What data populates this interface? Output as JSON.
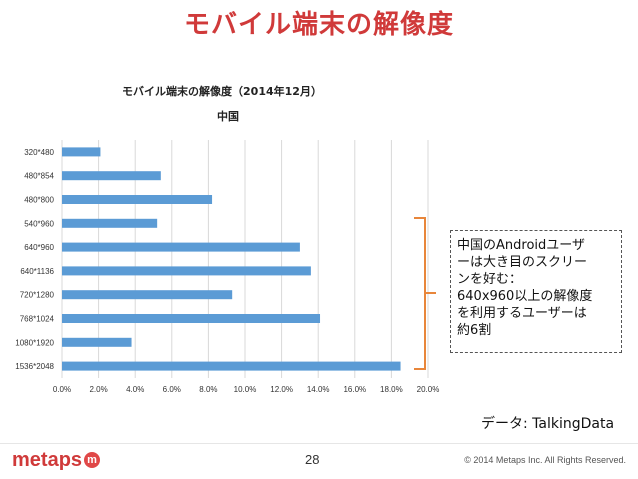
{
  "slide": {
    "title": "モバイル端末の解像度",
    "page_number": "28",
    "copyright": "© 2014 Metaps Inc. All Rights Reserved.",
    "logo_text": "metaps",
    "logo_mark": "m"
  },
  "note": {
    "lines": [
      "中国のAndroidユーザ",
      "ーは大き目のスクリー",
      "ンを好む：",
      "640x960以上の解像度",
      "を利用するユーザーは",
      "約6割"
    ]
  },
  "source": "データ: TalkingData",
  "colors": {
    "accent": "#d03a3a",
    "bar": "#5b9bd5",
    "bracket": "#e8863b"
  },
  "chart_data": {
    "type": "bar",
    "orientation": "horizontal",
    "title": "モバイル端末の解像度（2014年12月）",
    "subtitle": "中国",
    "categories": [
      "320*480",
      "480*854",
      "480*800",
      "540*960",
      "640*960",
      "640*1136",
      "720*1280",
      "768*1024",
      "1080*1920",
      "1536*2048"
    ],
    "values": [
      2.1,
      5.4,
      8.2,
      5.2,
      13.0,
      13.6,
      9.3,
      14.1,
      3.8,
      18.5
    ],
    "xlim": [
      0,
      20
    ],
    "xticks": [
      "0.0%",
      "2.0%",
      "4.0%",
      "6.0%",
      "8.0%",
      "10.0%",
      "12.0%",
      "14.0%",
      "16.0%",
      "18.0%",
      "20.0%"
    ],
    "grid": true,
    "xlabel": "",
    "ylabel": ""
  }
}
